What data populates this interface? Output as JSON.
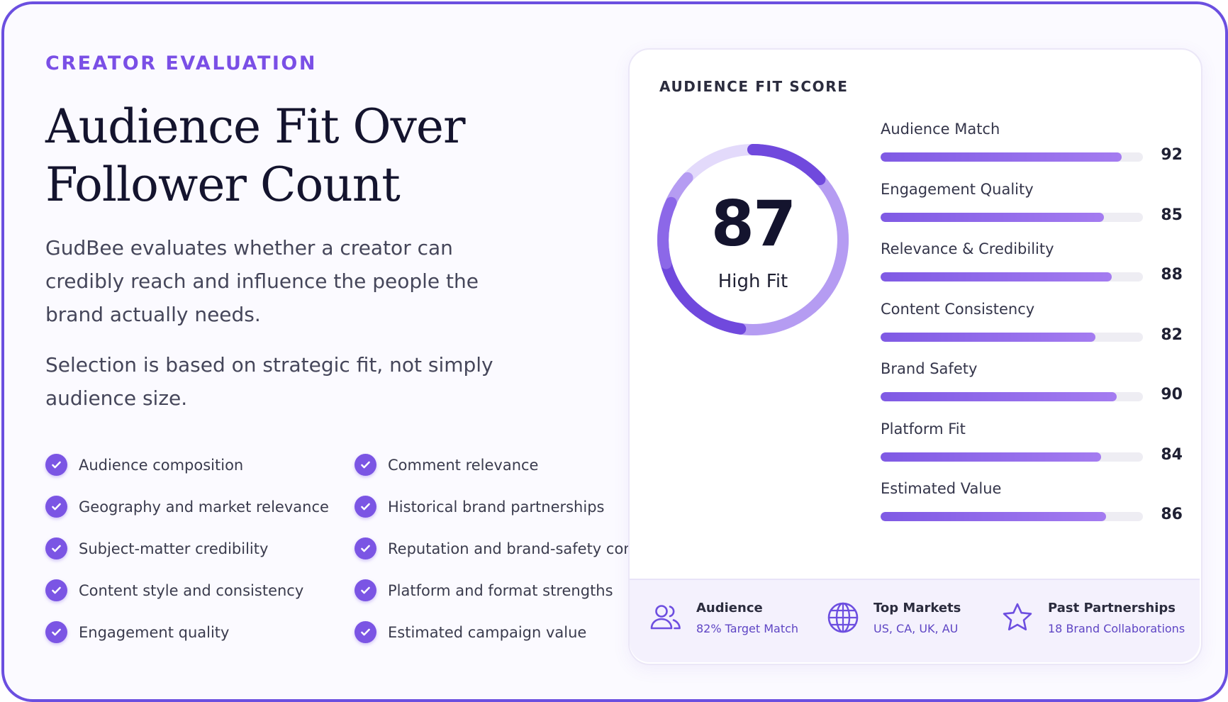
{
  "header": {
    "eyebrow": "CREATOR EVALUATION",
    "title": "Audience Fit Over Follower Count",
    "description_1": "GudBee evaluates whether a creator can credibly reach and influence the people the brand actually needs.",
    "description_2": "Selection is based on strategic fit, not simply audience size."
  },
  "criteria": [
    [
      "Audience composition",
      "Geography and market relevance",
      "Subject-matter credibility",
      "Content style and consistency",
      "Engagement quality"
    ],
    [
      "Comment relevance",
      "Historical brand partnerships",
      "Reputation and brand-safety concerns",
      "Platform and format strengths",
      "Estimated campaign value"
    ]
  ],
  "score_card": {
    "title": "AUDIENCE FIT SCORE",
    "score": 87,
    "score_label": "High Fit",
    "metrics": [
      {
        "name": "Audience Match",
        "value": 92
      },
      {
        "name": "Engagement Quality",
        "value": 85
      },
      {
        "name": "Relevance & Credibility",
        "value": 88
      },
      {
        "name": "Content Consistency",
        "value": 82
      },
      {
        "name": "Brand Safety",
        "value": 90
      },
      {
        "name": "Platform Fit",
        "value": 84
      },
      {
        "name": "Estimated Value",
        "value": 86
      }
    ],
    "footer": [
      {
        "icon": "users-icon",
        "title": "Audience",
        "subtitle": "82% Target Match"
      },
      {
        "icon": "globe-icon",
        "title": "Top Markets",
        "subtitle": "US, CA, UK, AU"
      },
      {
        "icon": "star-icon",
        "title": "Past Partnerships",
        "subtitle": "18 Brand Collaborations"
      }
    ]
  },
  "colors": {
    "accent": "#7b55e4",
    "frame": "#6b4fe0",
    "heading": "#14142e"
  }
}
